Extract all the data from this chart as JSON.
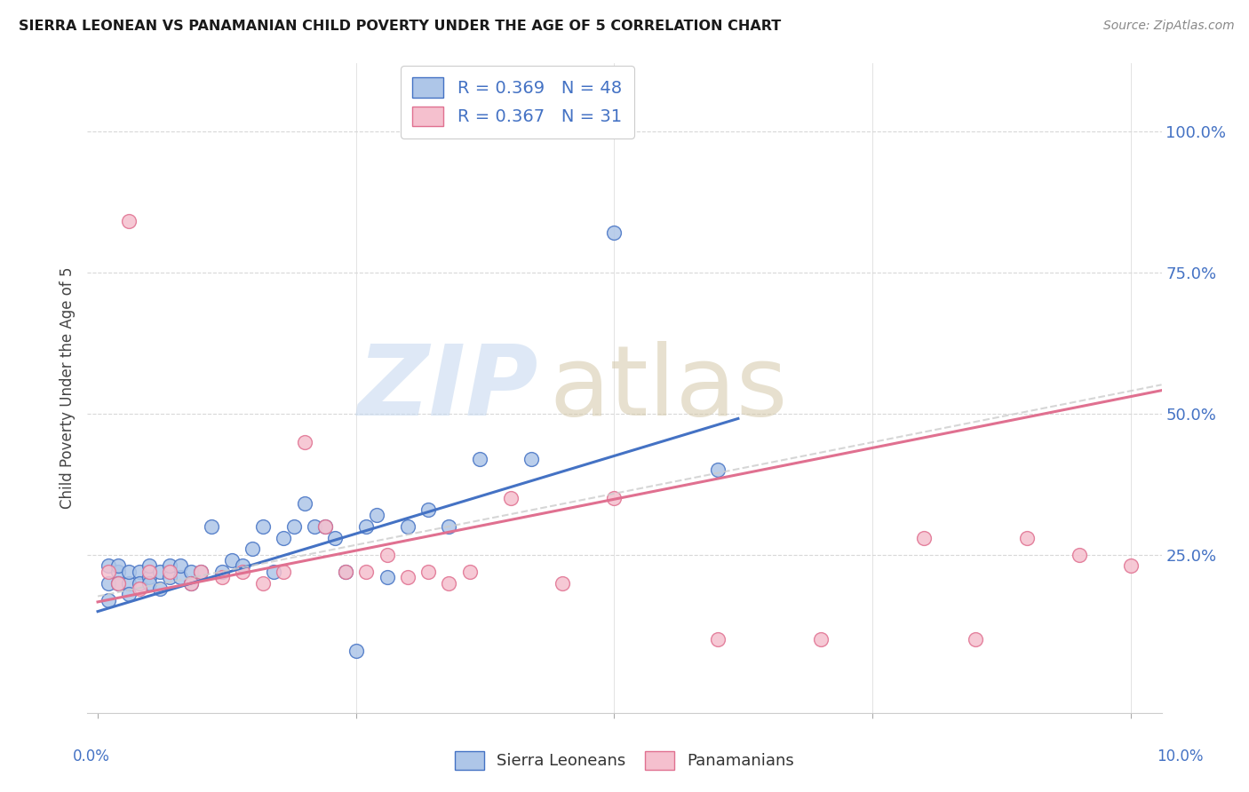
{
  "title": "SIERRA LEONEAN VS PANAMANIAN CHILD POVERTY UNDER THE AGE OF 5 CORRELATION CHART",
  "source": "Source: ZipAtlas.com",
  "ylabel": "Child Poverty Under the Age of 5",
  "blue_color": "#aec6e8",
  "pink_color": "#f5c0ce",
  "blue_line_color": "#4472c4",
  "pink_line_color": "#e07090",
  "blue_dash_color": "#b0c4de",
  "text_color": "#4472c4",
  "grid_color": "#d8d8d8",
  "sierra_R": "0.369",
  "sierra_N": "48",
  "panama_R": "0.367",
  "panama_N": "31",
  "sl_x": [
    0.001,
    0.001,
    0.001,
    0.002,
    0.002,
    0.002,
    0.003,
    0.003,
    0.003,
    0.004,
    0.004,
    0.005,
    0.005,
    0.005,
    0.006,
    0.006,
    0.007,
    0.007,
    0.008,
    0.008,
    0.009,
    0.009,
    0.01,
    0.011,
    0.012,
    0.013,
    0.014,
    0.015,
    0.016,
    0.017,
    0.018,
    0.019,
    0.02,
    0.021,
    0.022,
    0.023,
    0.024,
    0.025,
    0.026,
    0.027,
    0.028,
    0.03,
    0.032,
    0.034,
    0.037,
    0.042,
    0.05,
    0.06
  ],
  "sl_y": [
    0.2,
    0.23,
    0.17,
    0.22,
    0.2,
    0.23,
    0.2,
    0.22,
    0.18,
    0.22,
    0.2,
    0.21,
    0.23,
    0.2,
    0.22,
    0.19,
    0.21,
    0.23,
    0.21,
    0.23,
    0.22,
    0.2,
    0.22,
    0.3,
    0.22,
    0.24,
    0.23,
    0.26,
    0.3,
    0.22,
    0.28,
    0.3,
    0.34,
    0.3,
    0.3,
    0.28,
    0.22,
    0.08,
    0.3,
    0.32,
    0.21,
    0.3,
    0.33,
    0.3,
    0.42,
    0.42,
    0.82,
    0.4
  ],
  "pa_x": [
    0.001,
    0.002,
    0.003,
    0.004,
    0.005,
    0.007,
    0.009,
    0.01,
    0.012,
    0.014,
    0.016,
    0.018,
    0.02,
    0.022,
    0.024,
    0.026,
    0.028,
    0.03,
    0.032,
    0.034,
    0.036,
    0.04,
    0.045,
    0.05,
    0.06,
    0.07,
    0.08,
    0.085,
    0.09,
    0.095,
    0.1
  ],
  "pa_y": [
    0.22,
    0.2,
    0.84,
    0.19,
    0.22,
    0.22,
    0.2,
    0.22,
    0.21,
    0.22,
    0.2,
    0.22,
    0.45,
    0.3,
    0.22,
    0.22,
    0.25,
    0.21,
    0.22,
    0.2,
    0.22,
    0.35,
    0.2,
    0.35,
    0.1,
    0.1,
    0.28,
    0.1,
    0.28,
    0.25,
    0.23
  ],
  "xlim_min": -0.001,
  "xlim_max": 0.103,
  "ylim_min": -0.03,
  "ylim_max": 1.12,
  "yticks": [
    0.25,
    0.5,
    0.75,
    1.0
  ],
  "ytick_labels": [
    "25.0%",
    "50.0%",
    "75.0%",
    "100.0%"
  ]
}
